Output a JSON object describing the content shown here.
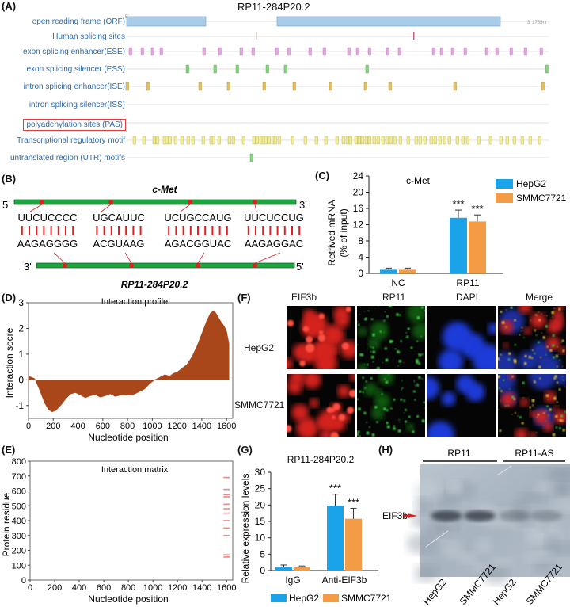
{
  "panelA": {
    "letter": "(A)",
    "title": "RP11-284P20.2",
    "tracks": [
      {
        "key": "orf",
        "label": "open reading frame (ORF)"
      },
      {
        "key": "hss",
        "label": "Human splicing sites"
      },
      {
        "key": "ese",
        "label": "exon splicing enhancer(ESE)"
      },
      {
        "key": "ess",
        "label": "exon splicing silencer (ESS)"
      },
      {
        "key": "ise",
        "label": "intron splicing enhancer(ISE)"
      },
      {
        "key": "iss",
        "label": "intron splicing silencer(ISS)"
      },
      {
        "key": "pas",
        "label": "polyadenylation sites (PAS)"
      },
      {
        "key": "trm",
        "label": "Transcriptional regulatory motif"
      },
      {
        "key": "utr",
        "label": "untranslated region (UTR) motifs"
      }
    ],
    "five_prime_tag": "5'",
    "three_prime_tag": "3' 1735nt",
    "colors": {
      "orf": "#a9cde9",
      "hss": "#c9a98b",
      "ese": "#e2a6e0",
      "ess": "#86d47e",
      "ise": "#e6c05c",
      "trm": "#f0ec9a",
      "utr": "#86d47e",
      "highlight": "#e43b3b",
      "label": "#2f6aa8"
    }
  },
  "panelB": {
    "letter": "(B)",
    "top_title": "c-Met",
    "bottom_title": "RP11-284P20.2",
    "five": "5'",
    "three": "3'",
    "top_seqs": [
      "UUCUCCCC",
      "UGCAUUC",
      "UCUGCCAUG",
      "UUCUCCUG"
    ],
    "bottom_seqs": [
      "AAGAGGGG",
      "ACGUAAG",
      "AGACGGUAC",
      "AAGAGGAC"
    ],
    "strand_color": "#1da640",
    "dot_color": "#e02020",
    "bond_color": "#e02020"
  },
  "panelC": {
    "letter": "(C)",
    "chart_data": {
      "type": "bar",
      "title": "c-Met",
      "ylabel_line1": "Retrived mRNA",
      "ylabel_line2": "(% of input)",
      "categories": [
        "NC",
        "RP11"
      ],
      "series": [
        {
          "name": "HepG2",
          "values": [
            0.9,
            13.7
          ],
          "errors": [
            0.4,
            1.9
          ],
          "color": "#1aa3e8"
        },
        {
          "name": "SMMC7721",
          "values": [
            0.9,
            12.8
          ],
          "errors": [
            0.4,
            1.6
          ],
          "color": "#f39c45"
        }
      ],
      "ylim": [
        0,
        24
      ],
      "yticks": [
        "0",
        "4",
        "8",
        "12",
        "16",
        "20",
        "24"
      ],
      "significance": [
        "",
        "***"
      ]
    }
  },
  "panelD": {
    "letter": "(D)",
    "chart_data": {
      "type": "area",
      "title": "Interaction profile",
      "xlabel": "Nucleotide position",
      "ylabel": "Interaction socre",
      "xlim": [
        0,
        1650
      ],
      "ylim": [
        -1.5,
        3
      ],
      "xticks": [
        "0",
        "200",
        "400",
        "600",
        "800",
        "1000",
        "1200",
        "1400",
        "1600"
      ],
      "yticks": [
        "-1",
        "0",
        "1",
        "2",
        "3"
      ],
      "x": [
        0,
        50,
        90,
        130,
        160,
        190,
        220,
        260,
        300,
        340,
        380,
        420,
        460,
        500,
        540,
        580,
        620,
        660,
        700,
        740,
        780,
        820,
        860,
        900,
        940,
        980,
        1020,
        1060,
        1100,
        1140,
        1170,
        1200,
        1240,
        1280,
        1320,
        1360,
        1400,
        1440,
        1470,
        1500,
        1520,
        1550,
        1580,
        1600,
        1620
      ],
      "y": [
        0.15,
        0.05,
        -0.4,
        -0.9,
        -1.15,
        -1.25,
        -1.2,
        -1.0,
        -0.75,
        -0.55,
        -0.5,
        -0.6,
        -0.7,
        -0.62,
        -0.58,
        -0.68,
        -0.62,
        -0.55,
        -0.65,
        -0.6,
        -0.58,
        -0.6,
        -0.55,
        -0.45,
        -0.35,
        -0.15,
        0.0,
        0.1,
        0.2,
        0.15,
        0.25,
        0.3,
        0.45,
        0.6,
        0.9,
        1.3,
        1.8,
        2.3,
        2.6,
        2.7,
        2.55,
        2.3,
        2.1,
        1.9,
        1.4
      ],
      "color": "#a9471b"
    }
  },
  "panelE": {
    "letter": "(E)",
    "chart_data": {
      "type": "heatmap",
      "title": "Interaction matrix",
      "xlabel": "Nucleotide position",
      "ylabel": "Protein residue",
      "xlim": [
        0,
        1650
      ],
      "ylim": [
        0,
        800
      ],
      "xticks": [
        "0",
        "200",
        "400",
        "600",
        "800",
        "1000",
        "1200",
        "1400",
        "1600"
      ],
      "yticks": [
        "0",
        "100",
        "200",
        "300",
        "400",
        "500",
        "600",
        "700",
        "800"
      ],
      "marks_x": 1600,
      "marks_y": [
        690,
        610,
        575,
        560,
        510,
        480,
        450,
        400,
        350,
        300,
        170,
        155
      ],
      "color": "#e88a8a"
    }
  },
  "panelF": {
    "letter": "(F)",
    "columns": [
      "EIF3b",
      "RP11",
      "DAPI",
      "Merge"
    ],
    "rows": [
      "HepG2",
      "SMMC7721"
    ]
  },
  "panelG": {
    "letter": "(G)",
    "chart_data": {
      "type": "bar",
      "title": "RP11-284P20.2",
      "ylabel": "Relative expression levels",
      "categories": [
        "IgG",
        "Anti-EIF3b"
      ],
      "series": [
        {
          "name": "HepG2",
          "values": [
            1.2,
            19.8
          ],
          "errors": [
            0.5,
            3.5
          ],
          "color": "#1aa3e8"
        },
        {
          "name": "SMMC7721",
          "values": [
            1.0,
            15.8
          ],
          "errors": [
            0.4,
            3.2
          ],
          "color": "#f39c45"
        }
      ],
      "ylim": [
        0,
        30
      ],
      "yticks": [
        "0",
        "5",
        "10",
        "15",
        "20",
        "25",
        "30"
      ],
      "significance": [
        "",
        "***"
      ]
    }
  },
  "panelH": {
    "letter": "(H)",
    "group_left": "RP11",
    "group_right": "RP11-AS",
    "band_label": "EIF3b",
    "lanes": [
      "HepG2",
      "SMMC7721",
      "HepG2",
      "SMMC7721"
    ]
  }
}
